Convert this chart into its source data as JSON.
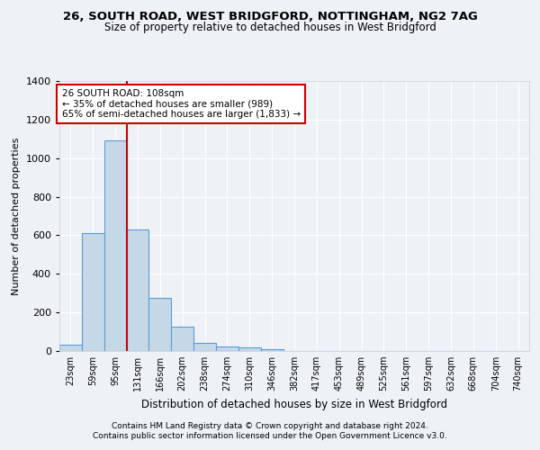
{
  "title1": "26, SOUTH ROAD, WEST BRIDGFORD, NOTTINGHAM, NG2 7AG",
  "title2": "Size of property relative to detached houses in West Bridgford",
  "xlabel": "Distribution of detached houses by size in West Bridgford",
  "ylabel": "Number of detached properties",
  "bar_labels": [
    "23sqm",
    "59sqm",
    "95sqm",
    "131sqm",
    "166sqm",
    "202sqm",
    "238sqm",
    "274sqm",
    "310sqm",
    "346sqm",
    "382sqm",
    "417sqm",
    "453sqm",
    "489sqm",
    "525sqm",
    "561sqm",
    "597sqm",
    "632sqm",
    "668sqm",
    "704sqm",
    "740sqm"
  ],
  "bar_values": [
    35,
    610,
    1090,
    630,
    275,
    125,
    42,
    22,
    20,
    10,
    0,
    0,
    0,
    0,
    0,
    0,
    0,
    0,
    0,
    0,
    0
  ],
  "bar_color": "#c5d8e8",
  "bar_edge_color": "#5b9bd5",
  "property_line_x": 2.5,
  "annotation_text": "26 SOUTH ROAD: 108sqm\n← 35% of detached houses are smaller (989)\n65% of semi-detached houses are larger (1,833) →",
  "annotation_box_color": "#ffffff",
  "annotation_box_edge": "#cc0000",
  "red_line_color": "#cc0000",
  "ylim": [
    0,
    1400
  ],
  "yticks": [
    0,
    200,
    400,
    600,
    800,
    1000,
    1200,
    1400
  ],
  "footnote1": "Contains HM Land Registry data © Crown copyright and database right 2024.",
  "footnote2": "Contains public sector information licensed under the Open Government Licence v3.0.",
  "bg_color": "#eef2f7",
  "plot_bg_color": "#eef2f7",
  "grid_color": "#ffffff"
}
